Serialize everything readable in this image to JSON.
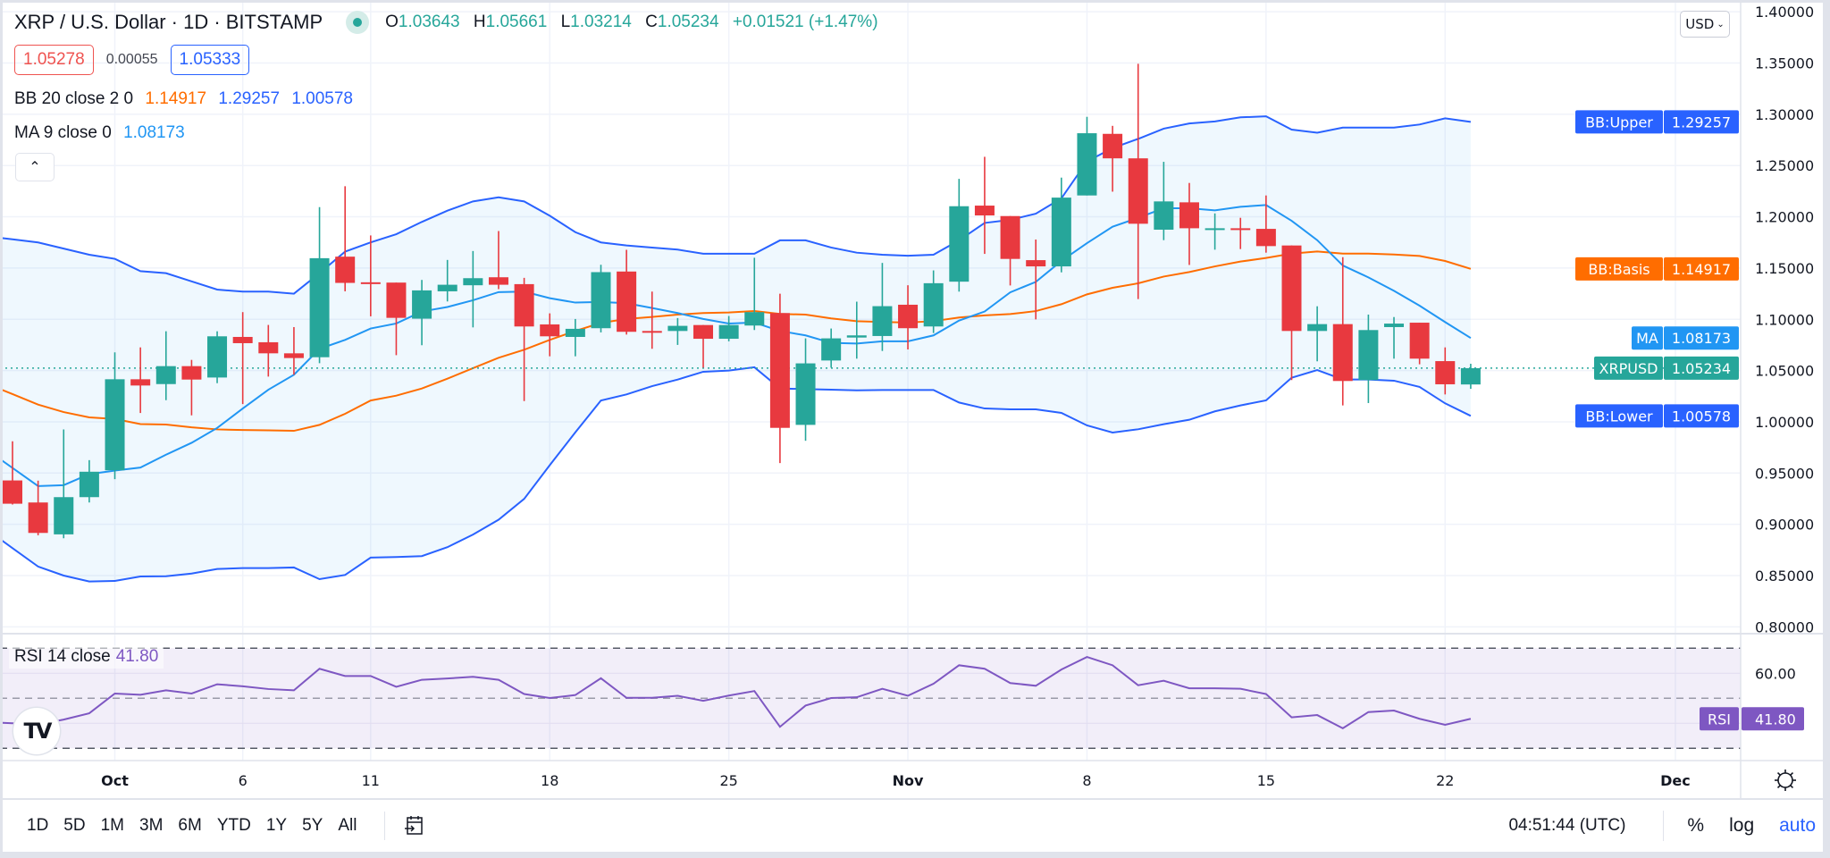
{
  "header": {
    "symbol_title": "XRP / U.S. Dollar · 1D · BITSTAMP",
    "ohlc": [
      {
        "label": "O",
        "value": "1.03643"
      },
      {
        "label": "H",
        "value": "1.05661"
      },
      {
        "label": "L",
        "value": "1.03214"
      },
      {
        "label": "C",
        "value": "1.05234"
      }
    ],
    "change": "+0.01521 (+1.47%)",
    "bid": "1.05278",
    "spread": "0.00055",
    "ask": "1.05333",
    "collapse_icon": "chevron-up-icon"
  },
  "indicators": {
    "bb": {
      "label": "BB 20 close 2 0",
      "basis": "1.14917",
      "upper": "1.29257",
      "lower": "1.00578"
    },
    "ma": {
      "label": "MA 9 close 0",
      "value": "1.08173"
    },
    "rsi": {
      "label": "RSI 14 close",
      "value": "41.80"
    }
  },
  "price_axis": {
    "currency": "USD",
    "ticks": [
      "1.40000",
      "1.35000",
      "1.30000",
      "1.25000",
      "1.20000",
      "1.15000",
      "1.10000",
      "1.05000",
      "1.00000",
      "0.95000",
      "0.90000",
      "0.85000",
      "0.80000"
    ],
    "labels": [
      {
        "name": "BB:Upper",
        "value": "1.29257",
        "color": "#2962ff"
      },
      {
        "name": "BB:Basis",
        "value": "1.14917",
        "color": "#ff6d00"
      },
      {
        "name": "MA",
        "value": "1.08173",
        "color": "#2196f3"
      },
      {
        "name": "XRPUSD",
        "value": "1.05234",
        "color": "#26a69a"
      },
      {
        "name": "BB:Lower",
        "value": "1.00578",
        "color": "#2962ff"
      }
    ]
  },
  "rsi_axis": {
    "ticks": [
      "60.00"
    ],
    "label": {
      "name": "RSI",
      "value": "41.80",
      "color": "#7e57c2"
    }
  },
  "time_axis": {
    "ticks": [
      {
        "label": "Oct",
        "date": "Oct 1"
      },
      {
        "label": "6",
        "date": "Oct 6"
      },
      {
        "label": "11",
        "date": "Oct 11"
      },
      {
        "label": "18",
        "date": "Oct 18"
      },
      {
        "label": "25",
        "date": "Oct 25"
      },
      {
        "label": "Nov",
        "date": "Nov 1"
      },
      {
        "label": "8",
        "date": "Nov 8"
      },
      {
        "label": "15",
        "date": "Nov 15"
      },
      {
        "label": "22",
        "date": "Nov 22"
      },
      {
        "label": "Dec",
        "date": "Dec 1"
      }
    ],
    "settings_icon": "gear-icon"
  },
  "toolbar": {
    "ranges": [
      "1D",
      "5D",
      "1M",
      "3M",
      "6M",
      "YTD",
      "1Y",
      "5Y",
      "All"
    ],
    "goto_icon": "calendar-goto-icon",
    "clock": "04:51:44 (UTC)",
    "percent": "%",
    "log": "log",
    "auto": "auto"
  },
  "colors": {
    "up": "#26a69a",
    "down": "#e8393f",
    "bb_band": "#2962ff",
    "bb_basis": "#ff6d00",
    "ma": "#2196f3",
    "rsi": "#7e57c2",
    "last_price_line": "#26a69a"
  },
  "chart_data": [
    {
      "type": "candlestick",
      "x": [
        "Sep 27",
        "Sep 28",
        "Sep 29",
        "Sep 30",
        "Oct 1",
        "Oct 2",
        "Oct 3",
        "Oct 4",
        "Oct 5",
        "Oct 6",
        "Oct 7",
        "Oct 8",
        "Oct 9",
        "Oct 10",
        "Oct 11",
        "Oct 12",
        "Oct 13",
        "Oct 14",
        "Oct 15",
        "Oct 16",
        "Oct 17",
        "Oct 18",
        "Oct 19",
        "Oct 20",
        "Oct 21",
        "Oct 22",
        "Oct 23",
        "Oct 24",
        "Oct 25",
        "Oct 26",
        "Oct 27",
        "Oct 28",
        "Oct 29",
        "Oct 30",
        "Oct 31",
        "Nov 1",
        "Nov 2",
        "Nov 3",
        "Nov 4",
        "Nov 5",
        "Nov 6",
        "Nov 7",
        "Nov 8",
        "Nov 9",
        "Nov 10",
        "Nov 11",
        "Nov 12",
        "Nov 13",
        "Nov 14",
        "Nov 15",
        "Nov 16",
        "Nov 17",
        "Nov 18",
        "Nov 19",
        "Nov 20",
        "Nov 21",
        "Nov 22",
        "Nov 23"
      ],
      "open": [
        0.9428,
        0.9213,
        0.8902,
        0.9265,
        0.9527,
        1.0415,
        1.0368,
        1.0543,
        1.0432,
        1.0828,
        1.0776,
        1.0668,
        1.063,
        1.1611,
        1.1361,
        1.1358,
        1.1006,
        1.1273,
        1.1332,
        1.141,
        1.1343,
        1.095,
        1.0828,
        1.0913,
        1.1466,
        1.0886,
        1.0886,
        1.0944,
        1.081,
        1.0939,
        1.1061,
        0.997,
        1.0598,
        1.0822,
        1.0837,
        1.1142,
        1.093,
        1.1367,
        1.2109,
        1.2007,
        1.1577,
        1.1516,
        1.2208,
        1.2809,
        1.257,
        1.1874,
        1.2141,
        1.1882,
        1.1888,
        1.1882,
        1.172,
        1.0886,
        1.0953,
        1.0407,
        1.0924,
        1.0967,
        1.0592,
        1.03643
      ],
      "high": [
        0.981,
        0.9426,
        0.9926,
        0.9626,
        1.0677,
        1.0726,
        1.0883,
        1.0604,
        1.0883,
        1.107,
        1.0945,
        1.0924,
        1.2094,
        1.2298,
        1.1818,
        1.1358,
        1.1384,
        1.1579,
        1.1666,
        1.1861,
        1.1404,
        1.1058,
        1.1003,
        1.1532,
        1.1678,
        1.127,
        1.1012,
        1.0944,
        1.1032,
        1.16,
        1.125,
        1.0814,
        1.091,
        1.1172,
        1.155,
        1.1332,
        1.1477,
        1.237,
        1.2585,
        1.2007,
        1.1778,
        1.2382,
        1.2975,
        1.2887,
        1.3492,
        1.2536,
        1.233,
        1.2033,
        1.199,
        1.2208,
        1.172,
        1.1127,
        1.1606,
        1.1046,
        1.1022,
        1.0967,
        1.0726,
        1.05661
      ],
      "low": [
        0.9193,
        0.8893,
        0.8864,
        0.9213,
        0.944,
        1.0086,
        1.0211,
        1.0063,
        1.0377,
        1.0173,
        1.0441,
        1.0459,
        1.0572,
        1.1273,
        1.1029,
        1.065,
        1.0747,
        1.1174,
        1.0921,
        1.1294,
        1.0202,
        1.0639,
        1.0639,
        1.0872,
        1.0851,
        1.0712,
        1.075,
        1.0528,
        1.0785,
        1.0895,
        0.9597,
        0.9815,
        1.0528,
        1.0616,
        1.0691,
        1.0706,
        1.0866,
        1.127,
        1.1638,
        1.133,
        1.0999,
        1.1458,
        1.2208,
        1.2245,
        1.1197,
        1.1772,
        1.153,
        1.1679,
        1.1685,
        1.165,
        1.0407,
        1.059,
        1.016,
        1.0183,
        1.0616,
        1.0561,
        1.0267,
        1.03214
      ],
      "close": [
        0.9201,
        0.8916,
        0.9265,
        0.9513,
        1.0415,
        1.0354,
        1.0543,
        1.0412,
        1.0834,
        1.0767,
        1.0668,
        1.0622,
        1.1596,
        1.1355,
        1.1349,
        1.1014,
        1.1282,
        1.1337,
        1.1401,
        1.1337,
        1.093,
        1.0834,
        1.0907,
        1.146,
        1.0878,
        1.0875,
        1.0936,
        1.081,
        1.0944,
        1.107,
        0.9941,
        1.057,
        1.0814,
        1.0843,
        1.1128,
        1.0913,
        1.1352,
        1.2103,
        1.2013,
        1.1589,
        1.1516,
        1.2187,
        1.2815,
        1.257,
        1.1932,
        1.215,
        1.1888,
        1.1888,
        1.1882,
        1.1714,
        1.0886,
        1.0953,
        1.0398,
        1.0895,
        1.0958,
        1.0616,
        1.0366,
        1.05234
      ],
      "bb_upper": [
        1.178,
        1.175,
        1.169,
        1.163,
        1.159,
        1.147,
        1.145,
        1.137,
        1.129,
        1.127,
        1.127,
        1.125,
        1.145,
        1.166,
        1.175,
        1.183,
        1.195,
        1.206,
        1.215,
        1.219,
        1.215,
        1.201,
        1.185,
        1.175,
        1.172,
        1.17,
        1.168,
        1.164,
        1.164,
        1.164,
        1.177,
        1.177,
        1.17,
        1.165,
        1.163,
        1.162,
        1.163,
        1.177,
        1.194,
        1.197,
        1.203,
        1.218,
        1.254,
        1.267,
        1.276,
        1.286,
        1.291,
        1.293,
        1.297,
        1.298,
        1.285,
        1.282,
        1.287,
        1.287,
        1.287,
        1.29,
        1.296,
        1.29257
      ],
      "bb_basis": [
        1.027,
        1.0168,
        1.0095,
        1.0043,
        1.0028,
        0.9978,
        0.9973,
        0.9946,
        0.9926,
        0.992,
        0.9917,
        0.9912,
        0.997,
        1.0078,
        1.0208,
        1.0255,
        1.0325,
        1.0421,
        1.0523,
        1.0625,
        1.0703,
        1.0799,
        1.0886,
        1.0965,
        1.1003,
        1.1023,
        1.1046,
        1.1061,
        1.1067,
        1.1081,
        1.1052,
        1.1046,
        1.1009,
        1.0982,
        1.0974,
        1.0968,
        1.0982,
        1.1017,
        1.1038,
        1.1051,
        1.108,
        1.1147,
        1.1243,
        1.1307,
        1.1351,
        1.1417,
        1.1461,
        1.1516,
        1.1563,
        1.1598,
        1.1641,
        1.1662,
        1.1641,
        1.1641,
        1.1632,
        1.1618,
        1.1569,
        1.14917
      ],
      "bb_lower": [
        0.8768,
        0.8588,
        0.85,
        0.8442,
        0.8448,
        0.8491,
        0.8494,
        0.852,
        0.8564,
        0.8573,
        0.8573,
        0.8579,
        0.8465,
        0.8506,
        0.8675,
        0.8681,
        0.869,
        0.8777,
        0.89,
        0.9045,
        0.9248,
        0.9577,
        0.9897,
        1.0208,
        1.0267,
        1.0348,
        1.0412,
        1.0488,
        1.05,
        1.0532,
        1.0325,
        1.0319,
        1.0313,
        1.0307,
        1.031,
        1.031,
        1.031,
        1.0188,
        1.013,
        1.0122,
        1.0122,
        1.0087,
        0.9965,
        0.9895,
        0.9927,
        0.9977,
        1.002,
        1.0102,
        1.016,
        1.0209,
        1.043,
        1.0505,
        1.0413,
        1.0413,
        1.0401,
        1.034,
        1.018,
        1.00578
      ],
      "ma9": [
        0.955,
        0.9373,
        0.9382,
        0.949,
        0.9524,
        0.9554,
        0.9679,
        0.9795,
        0.994,
        1.013,
        1.0313,
        1.0459,
        1.0712,
        1.0799,
        1.091,
        1.0959,
        1.1076,
        1.112,
        1.1186,
        1.1265,
        1.127,
        1.1206,
        1.1163,
        1.1169,
        1.1157,
        1.111,
        1.1061,
        1.1003,
        1.0959,
        1.0968,
        1.0886,
        1.0843,
        1.077,
        1.0764,
        1.0785,
        1.0785,
        1.0843,
        1.0988,
        1.1076,
        1.1263,
        1.1365,
        1.1569,
        1.1743,
        1.1903,
        1.199,
        1.2083,
        1.2083,
        1.2063,
        1.2097,
        1.2115,
        1.1961,
        1.1772,
        1.1525,
        1.1409,
        1.1278,
        1.1133,
        1.0973,
        1.08173
      ],
      "last_price": 1.05234,
      "ylim": [
        0.79,
        1.405
      ],
      "grid": true
    },
    {
      "type": "line",
      "name": "RSI",
      "values": [
        40.0,
        39.5,
        41.5,
        44.0,
        51.9,
        51.4,
        53.2,
        51.9,
        55.6,
        54.8,
        53.7,
        53.2,
        61.8,
        58.9,
        58.9,
        54.6,
        57.4,
        57.9,
        58.6,
        57.4,
        51.7,
        50.1,
        51.3,
        58.0,
        50.2,
        50.2,
        51.0,
        49.0,
        51.1,
        52.9,
        38.6,
        47.1,
        50.1,
        50.4,
        53.8,
        51.0,
        55.8,
        63.2,
        61.8,
        56.1,
        55.0,
        61.5,
        66.5,
        63.2,
        55.2,
        57.0,
        54.0,
        54.0,
        53.8,
        51.7,
        42.4,
        43.3,
        38.0,
        44.5,
        45.1,
        41.8,
        39.4,
        41.8
      ],
      "bands": [
        70,
        50,
        30
      ],
      "grid": true
    }
  ]
}
